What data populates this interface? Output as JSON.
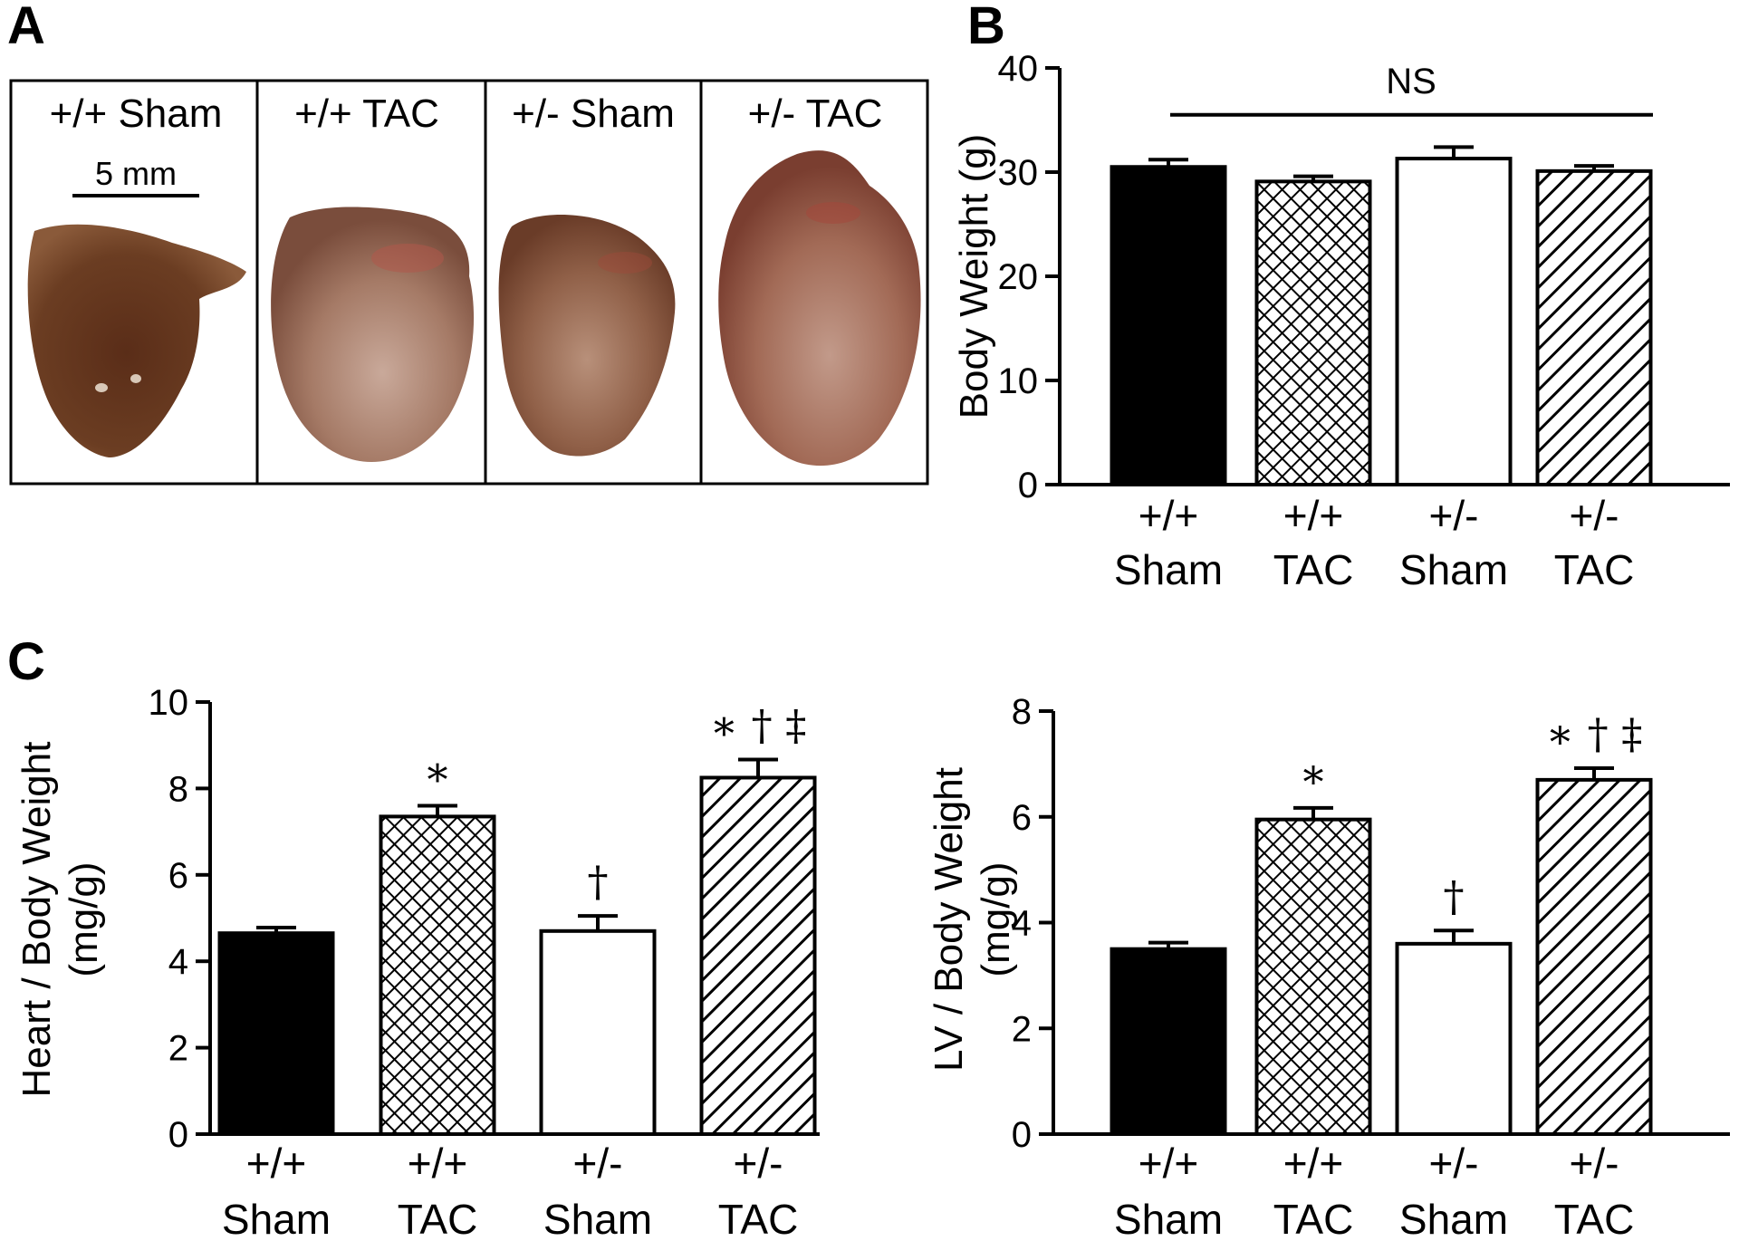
{
  "figure": {
    "panel_labels": [
      "A",
      "B",
      "C"
    ]
  },
  "panel_a": {
    "photos": [
      {
        "label": "+/+ Sham",
        "tone": "#6b3d22"
      },
      {
        "label": "+/+ TAC",
        "tone": "#9a6a55"
      },
      {
        "label": "+/- Sham",
        "tone": "#8b5a3e"
      },
      {
        "label": "+/- TAC",
        "tone": "#9b5d48"
      }
    ],
    "scale_bar_label": "5 mm"
  },
  "colors": {
    "black": "#000000",
    "white": "#ffffff"
  },
  "chart_data": [
    {
      "id": "B",
      "type": "bar",
      "title": "",
      "ylabel": "Body Weight (g)",
      "xlabel": "",
      "ylim": [
        0,
        40
      ],
      "yticks": [
        0,
        10,
        20,
        30,
        40
      ],
      "categories": [
        {
          "line1": "+/+",
          "line2": "Sham"
        },
        {
          "line1": "+/+",
          "line2": "TAC"
        },
        {
          "line1": "+/-",
          "line2": "Sham"
        },
        {
          "line1": "+/-",
          "line2": "TAC"
        }
      ],
      "values": [
        30.5,
        29.1,
        31.3,
        30.1
      ],
      "errors": [
        0.7,
        0.5,
        1.1,
        0.5
      ],
      "fills": [
        "solid-black",
        "crosshatch",
        "white",
        "diagonal-hatch"
      ],
      "annotations": [
        "",
        "",
        "",
        ""
      ],
      "ns_bracket": {
        "label": "NS",
        "y": 35.5
      }
    },
    {
      "id": "C-left",
      "type": "bar",
      "title": "",
      "ylabel_lines": [
        "Heart / Body Weight",
        "(mg/g)"
      ],
      "xlabel": "",
      "ylim": [
        0,
        10
      ],
      "yticks": [
        0,
        2,
        4,
        6,
        8,
        10
      ],
      "categories": [
        {
          "line1": "+/+",
          "line2": "Sham"
        },
        {
          "line1": "+/+",
          "line2": "TAC"
        },
        {
          "line1": "+/-",
          "line2": "Sham"
        },
        {
          "line1": "+/-",
          "line2": "TAC"
        }
      ],
      "values": [
        4.65,
        7.35,
        4.7,
        8.25
      ],
      "errors": [
        0.13,
        0.25,
        0.35,
        0.42
      ],
      "fills": [
        "solid-black",
        "crosshatch",
        "white",
        "diagonal-hatch"
      ],
      "annotations": [
        "",
        "∗",
        "†",
        "∗ † ‡"
      ]
    },
    {
      "id": "C-right",
      "type": "bar",
      "title": "",
      "ylabel_lines": [
        "LV / Body Weight",
        "(mg/g)"
      ],
      "xlabel": "",
      "ylim": [
        0,
        8
      ],
      "yticks": [
        0,
        2,
        4,
        6,
        8
      ],
      "categories": [
        {
          "line1": "+/+",
          "line2": "Sham"
        },
        {
          "line1": "+/+",
          "line2": "TAC"
        },
        {
          "line1": "+/-",
          "line2": "Sham"
        },
        {
          "line1": "+/-",
          "line2": "TAC"
        }
      ],
      "values": [
        3.5,
        5.95,
        3.6,
        6.7
      ],
      "errors": [
        0.12,
        0.22,
        0.25,
        0.22
      ],
      "fills": [
        "solid-black",
        "crosshatch",
        "white",
        "diagonal-hatch"
      ],
      "annotations": [
        "",
        "∗",
        "†",
        "∗ † ‡"
      ]
    }
  ]
}
